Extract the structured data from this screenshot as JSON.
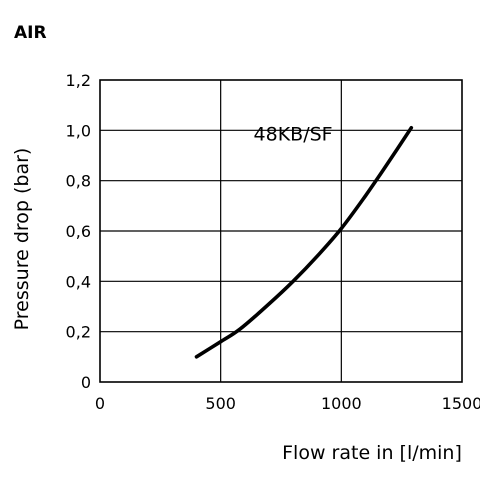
{
  "chart_data": {
    "type": "line",
    "title": "AIR",
    "xlabel": "Flow rate in [l/min]",
    "ylabel": "Pressure drop (bar)",
    "xlim": [
      0,
      1500
    ],
    "ylim": [
      0,
      1.2
    ],
    "x_ticks": [
      0,
      500,
      1000,
      1500
    ],
    "x_tick_labels": [
      "0",
      "500",
      "1000",
      "1500"
    ],
    "y_ticks": [
      0,
      0.2,
      0.4,
      0.6,
      0.8,
      1.0,
      1.2
    ],
    "y_tick_labels": [
      "0",
      "0,2",
      "0,4",
      "0,6",
      "0,8",
      "1,0",
      "1,2"
    ],
    "grid": true,
    "annotation": "48KB/SF",
    "series": [
      {
        "name": "48KB/SF",
        "x": [
          400,
          500,
          580,
          700,
          800,
          900,
          1000,
          1100,
          1200,
          1290
        ],
        "y": [
          0.1,
          0.16,
          0.21,
          0.31,
          0.4,
          0.5,
          0.61,
          0.74,
          0.88,
          1.01
        ],
        "color": "#000000"
      }
    ]
  }
}
